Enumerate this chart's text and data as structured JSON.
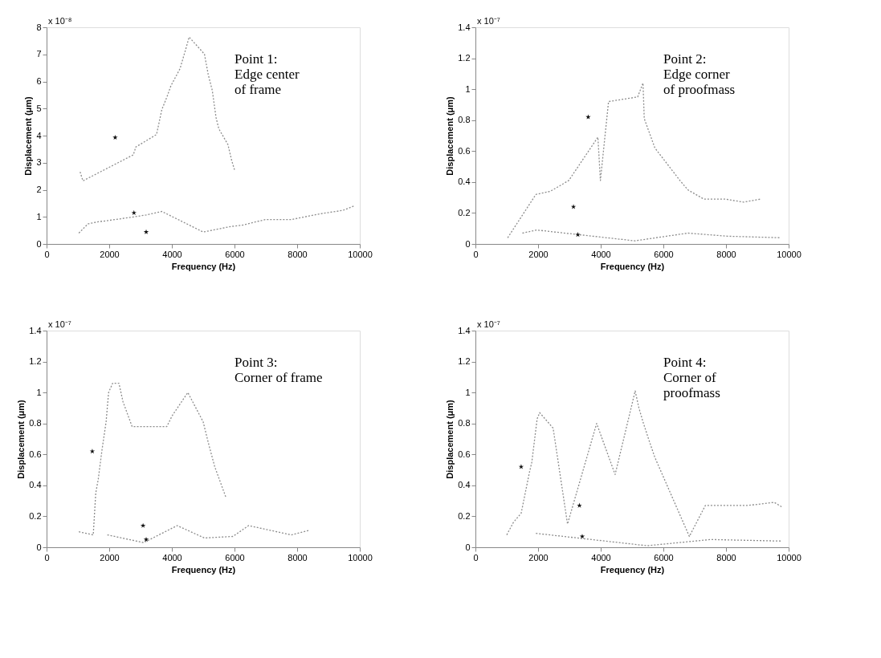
{
  "chart_data": [
    {
      "type": "line",
      "xlabel": "Frequency (Hz)",
      "ylabel": "Displacement (μm)",
      "xlim": [
        0,
        10000
      ],
      "ylim": [
        0,
        8
      ],
      "xticks": [
        0,
        2000,
        4000,
        6000,
        8000,
        10000
      ],
      "yticks": [
        0,
        1,
        2,
        3,
        4,
        5,
        6,
        7,
        8
      ],
      "grid": false,
      "line_style": "dotted",
      "annotations": [
        "x 10⁻⁸",
        "Point 1:\nEdge center\n of frame"
      ],
      "series": [
        {
          "color": "#8c8c8c",
          "x": [
            1070,
            1160,
            2770,
            2850,
            3510,
            3680,
            3840,
            3970,
            4260,
            4460,
            4550,
            5040,
            5160,
            5290,
            5410,
            5500,
            5790,
            5910,
            6000
          ],
          "values": [
            2.66,
            2.33,
            3.29,
            3.58,
            4.04,
            4.96,
            5.42,
            5.84,
            6.47,
            7.26,
            7.64,
            7.01,
            6.26,
            5.67,
            4.67,
            4.25,
            3.67,
            3.08,
            2.74
          ]
        },
        {
          "color": "#8c8c8c",
          "x": [
            1030,
            1320,
            1650,
            1940,
            2730,
            3180,
            3680,
            5000,
            5910,
            6240,
            6980,
            7810,
            8720,
            9460,
            9830
          ],
          "values": [
            0.4,
            0.74,
            0.82,
            0.86,
            0.99,
            1.07,
            1.2,
            0.44,
            0.65,
            0.69,
            0.9,
            0.9,
            1.11,
            1.24,
            1.41
          ]
        },
        {
          "type": "scatter",
          "marker": "star",
          "color": "#111111",
          "x": [
            2190,
            2790,
            3180
          ],
          "values": [
            3.93,
            1.15,
            0.44
          ]
        }
      ]
    },
    {
      "type": "line",
      "xlabel": "Frequency (Hz)",
      "ylabel": "Displacement (μm)",
      "xlim": [
        0,
        10000
      ],
      "ylim": [
        0,
        1.4
      ],
      "xticks": [
        0,
        2000,
        4000,
        6000,
        8000,
        10000
      ],
      "yticks": [
        0,
        0.2,
        0.4,
        0.6,
        0.8,
        1,
        1.2,
        1.4
      ],
      "grid": false,
      "line_style": "dotted",
      "annotations": [
        "x 10⁻⁷",
        "Point 2:\nEdge corner\nof proofmass"
      ],
      "series": [
        {
          "color": "#8c8c8c",
          "x": [
            1030,
            1930,
            2390,
            2980,
            3910,
            3990,
            4250,
            5180,
            5350,
            5390,
            5730,
            6530,
            6780,
            7290,
            7970,
            8560,
            9110
          ],
          "values": [
            0.04,
            0.32,
            0.34,
            0.41,
            0.69,
            0.41,
            0.92,
            0.95,
            1.04,
            0.81,
            0.62,
            0.41,
            0.35,
            0.29,
            0.29,
            0.27,
            0.29
          ]
        },
        {
          "color": "#8c8c8c",
          "x": [
            1500,
            1960,
            5090,
            6780,
            8050,
            9750
          ],
          "values": [
            0.07,
            0.09,
            0.02,
            0.07,
            0.05,
            0.04
          ]
        },
        {
          "type": "scatter",
          "marker": "star",
          "color": "#111111",
          "x": [
            3600,
            3130,
            3270
          ],
          "values": [
            0.82,
            0.24,
            0.06
          ]
        }
      ]
    },
    {
      "type": "line",
      "xlabel": "Frequency (Hz)",
      "ylabel": "Displacement (μm)",
      "xlim": [
        0,
        10000
      ],
      "ylim": [
        0,
        1.4
      ],
      "xticks": [
        0,
        2000,
        4000,
        6000,
        8000,
        10000
      ],
      "yticks": [
        0,
        0.2,
        0.4,
        0.6,
        0.8,
        1,
        1.2,
        1.4
      ],
      "grid": false,
      "line_style": "dotted",
      "annotations": [
        "x 10⁻⁷",
        "Point 3:\nCorner of frame"
      ],
      "series": [
        {
          "color": "#8c8c8c",
          "x": [
            1030,
            1490,
            1570,
            1650,
            1770,
            1900,
            1980,
            2110,
            2310,
            2440,
            2730,
            3840,
            4010,
            4510,
            5000,
            5170,
            5370,
            5730
          ],
          "values": [
            0.1,
            0.08,
            0.35,
            0.44,
            0.63,
            0.81,
            1.0,
            1.06,
            1.06,
            0.94,
            0.78,
            0.78,
            0.85,
            1.0,
            0.81,
            0.67,
            0.52,
            0.32
          ]
        },
        {
          "color": "#8c8c8c",
          "x": [
            1940,
            3100,
            4170,
            5040,
            5950,
            6450,
            7810,
            8390
          ],
          "values": [
            0.08,
            0.03,
            0.14,
            0.06,
            0.07,
            0.14,
            0.08,
            0.11
          ]
        },
        {
          "type": "scatter",
          "marker": "star",
          "color": "#111111",
          "x": [
            1460,
            3080,
            3180
          ],
          "values": [
            0.62,
            0.14,
            0.05
          ]
        }
      ]
    },
    {
      "type": "line",
      "xlabel": "Frequency (Hz)",
      "ylabel": "Displacement (μm)",
      "xlim": [
        0,
        10000
      ],
      "ylim": [
        0,
        1.4
      ],
      "xticks": [
        0,
        2000,
        4000,
        6000,
        8000,
        10000
      ],
      "yticks": [
        0,
        0.2,
        0.4,
        0.6,
        0.8,
        1,
        1.2,
        1.4
      ],
      "grid": false,
      "line_style": "dotted",
      "annotations": [
        "x 10⁻⁷",
        "Point 4:\nCorner of\nproofmass"
      ],
      "series": [
        {
          "color": "#8c8c8c",
          "x": [
            1000,
            1210,
            1460,
            1720,
            1800,
            1970,
            2050,
            2480,
            2940,
            3870,
            4460,
            5100,
            5220,
            5350,
            5560,
            5730,
            6830,
            7340,
            7930,
            8690,
            9540,
            9790
          ],
          "values": [
            0.08,
            0.16,
            0.22,
            0.48,
            0.55,
            0.83,
            0.87,
            0.77,
            0.15,
            0.8,
            0.47,
            1.01,
            0.9,
            0.81,
            0.68,
            0.58,
            0.07,
            0.27,
            0.27,
            0.27,
            0.29,
            0.26
          ]
        },
        {
          "color": "#8c8c8c",
          "x": [
            1930,
            5480,
            7510,
            9790
          ],
          "values": [
            0.09,
            0.01,
            0.05,
            0.04
          ]
        },
        {
          "type": "scatter",
          "marker": "star",
          "color": "#111111",
          "x": [
            1460,
            3320,
            3410
          ],
          "values": [
            0.52,
            0.27,
            0.07
          ]
        }
      ]
    }
  ]
}
